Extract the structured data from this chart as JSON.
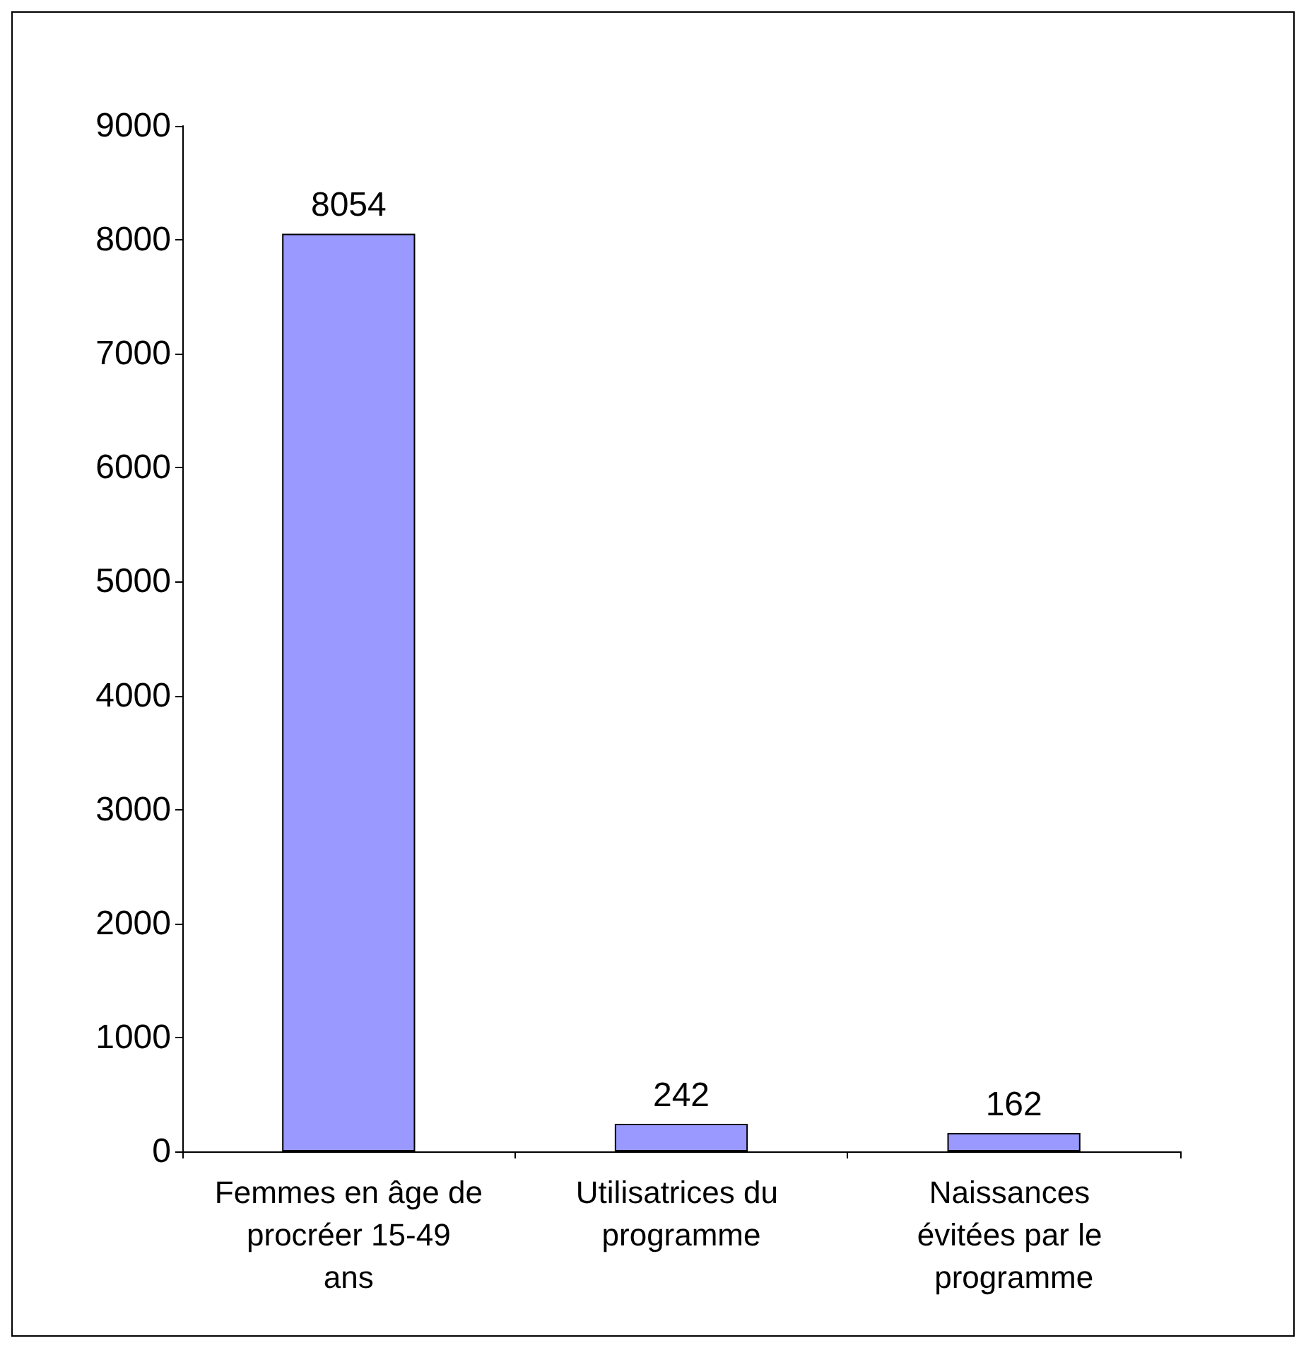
{
  "chart_data": {
    "type": "bar",
    "categories": [
      "Femmes en âge de procréer 15-49 ans",
      "Utilisatrices du programme",
      "Naissances évitées par le programme"
    ],
    "values": [
      8054,
      242,
      162
    ],
    "color": "#9999ff",
    "ylim": [
      0,
      9000
    ],
    "yticks": [
      0,
      1000,
      2000,
      3000,
      4000,
      5000,
      6000,
      7000,
      8000,
      9000
    ],
    "grid": false,
    "data_labels": true
  }
}
